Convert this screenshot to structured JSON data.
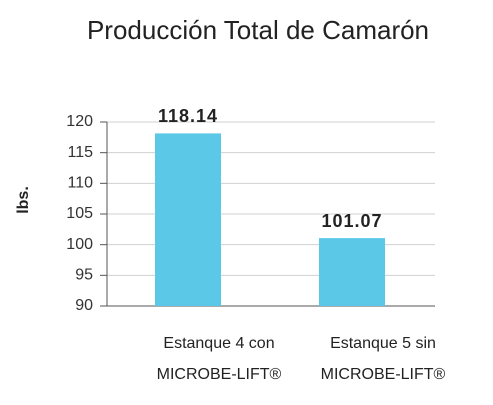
{
  "chart_data": {
    "type": "bar",
    "title": "Producción Total de Camarón",
    "y_label": "lbs.",
    "categories": [
      [
        "Estanque 4 con",
        "MICROBE-LIFT®"
      ],
      [
        "Estanque 5 sin",
        "MICROBE-LIFT®"
      ]
    ],
    "values": [
      118.14,
      101.07
    ],
    "color": "#5bc8e8",
    "ylim": [
      90,
      120
    ],
    "yticks": [
      90,
      95,
      100,
      105,
      110,
      115,
      120
    ],
    "grid": true
  }
}
